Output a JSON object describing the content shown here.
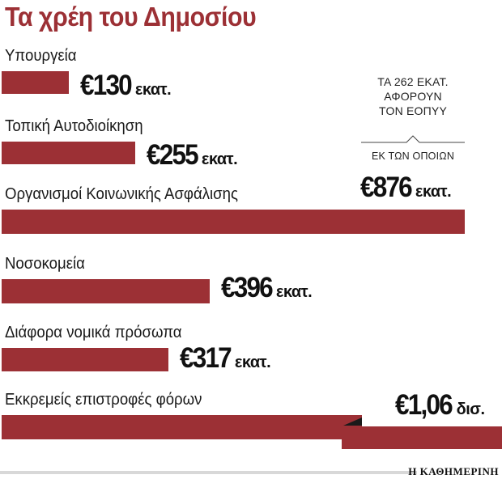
{
  "chart_data": {
    "type": "bar",
    "title": "Τα χρέη του Δημοσίου",
    "categories": [
      "Υπουργεία",
      "Τοπική Αυτοδιοίκηση",
      "Οργανισμοί Κοινωνικής Ασφάλισης",
      "Νοσοκομεία",
      "Διάφορα νομικά πρόσωπα",
      "Εκκρεμείς επιστροφές φόρων"
    ],
    "values": [
      130,
      255,
      876,
      396,
      317,
      1060
    ],
    "units": "εκατ. €",
    "value_labels": [
      {
        "num": "€130",
        "unit": "εκατ."
      },
      {
        "num": "€255",
        "unit": "εκατ."
      },
      {
        "num": "€876",
        "unit": "εκατ."
      },
      {
        "num": "€396",
        "unit": "εκατ."
      },
      {
        "num": "€317",
        "unit": "εκατ."
      },
      {
        "num": "€1,06",
        "unit": "δισ."
      }
    ],
    "bar_color": "#9c3035",
    "annotation": {
      "lines": [
        "ΤΑ 262 ΕΚΑΤ.",
        "ΑΦΟΡΟΥΝ",
        "ΤΟΝ ΕΟΠΥΥ"
      ],
      "sub": "ΕΚ ΤΩΝ ΟΠΟΙΩΝ"
    },
    "xlim": [
      0,
      1060
    ],
    "grid": false,
    "legend": "none"
  },
  "source": "Η ΚΑΘΗΜΕΡΙΝΗ"
}
